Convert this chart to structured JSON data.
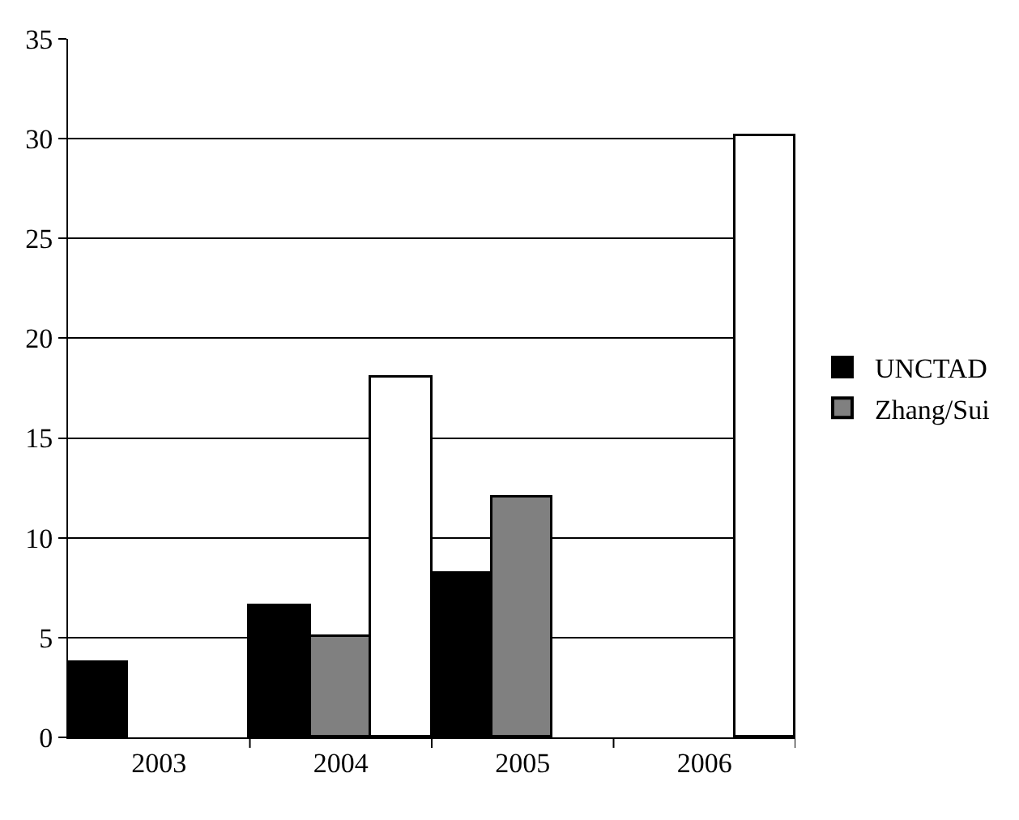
{
  "chart_data": {
    "type": "bar",
    "categories": [
      "2003",
      "2004",
      "2005",
      "2006"
    ],
    "series": [
      {
        "name": "UNCTAD",
        "color": "#000000",
        "values": [
          3.7,
          6.6,
          8.2,
          null
        ]
      },
      {
        "name": "Zhang/Sui",
        "color": "#808080",
        "values": [
          null,
          5.0,
          12.0,
          null
        ]
      },
      {
        "color": "#ffffff",
        "values": [
          null,
          18.0,
          null,
          30.1
        ]
      }
    ],
    "ylim": [
      0,
      35
    ],
    "yticks": [
      0,
      5,
      10,
      15,
      20,
      25,
      30,
      35
    ],
    "grid": "y",
    "legend": "right"
  }
}
